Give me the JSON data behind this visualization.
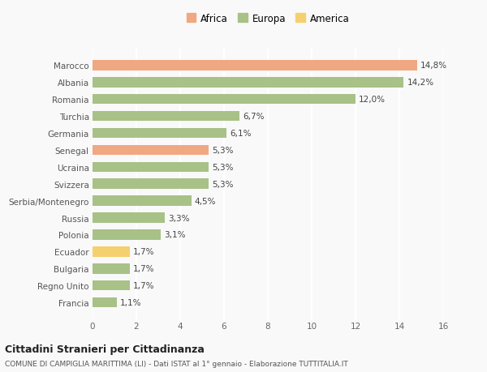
{
  "categories": [
    "Francia",
    "Regno Unito",
    "Bulgaria",
    "Ecuador",
    "Polonia",
    "Russia",
    "Serbia/Montenegro",
    "Svizzera",
    "Ucraina",
    "Senegal",
    "Germania",
    "Turchia",
    "Romania",
    "Albania",
    "Marocco"
  ],
  "values": [
    1.1,
    1.7,
    1.7,
    1.7,
    3.1,
    3.3,
    4.5,
    5.3,
    5.3,
    5.3,
    6.1,
    6.7,
    12.0,
    14.2,
    14.8
  ],
  "colors": [
    "#a8c187",
    "#a8c187",
    "#a8c187",
    "#f5d06e",
    "#a8c187",
    "#a8c187",
    "#a8c187",
    "#a8c187",
    "#a8c187",
    "#f0a882",
    "#a8c187",
    "#a8c187",
    "#a8c187",
    "#a8c187",
    "#f0a882"
  ],
  "labels": [
    "1,1%",
    "1,7%",
    "1,7%",
    "1,7%",
    "3,1%",
    "3,3%",
    "4,5%",
    "5,3%",
    "5,3%",
    "5,3%",
    "6,1%",
    "6,7%",
    "12,0%",
    "14,2%",
    "14,8%"
  ],
  "legend": [
    {
      "label": "Africa",
      "color": "#f0a882"
    },
    {
      "label": "Europa",
      "color": "#a8c187"
    },
    {
      "label": "America",
      "color": "#f5d06e"
    }
  ],
  "xlim": [
    0,
    16
  ],
  "xticks": [
    0,
    2,
    4,
    6,
    8,
    10,
    12,
    14,
    16
  ],
  "title1": "Cittadini Stranieri per Cittadinanza",
  "title2": "COMUNE DI CAMPIGLIA MARITTIMA (LI) - Dati ISTAT al 1° gennaio - Elaborazione TUTTITALIA.IT",
  "background_color": "#f9f9f9",
  "grid_color": "#ffffff",
  "bar_height": 0.6,
  "label_fontsize": 7.5,
  "ytick_fontsize": 7.5,
  "xtick_fontsize": 7.5
}
